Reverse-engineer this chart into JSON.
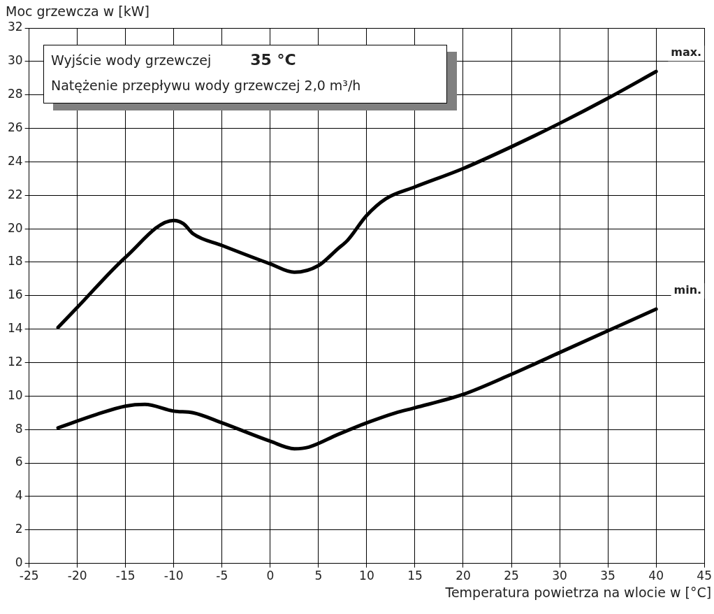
{
  "chart_data": {
    "type": "line",
    "ylabel": "Moc grzewcza w [kW]",
    "xlabel": "Temperatura powietrza na wlocie w [°C]",
    "annotations": [
      "Wyjście wody grzewczej",
      "35 °C",
      "Natężenie przepływu wody grzewczej  2,0 m³/h"
    ],
    "xlim": [
      -25,
      45
    ],
    "xticks": [
      -25,
      -20,
      -15,
      -10,
      -5,
      0,
      5,
      10,
      15,
      20,
      25,
      30,
      35,
      40,
      45
    ],
    "ylim": [
      0,
      32
    ],
    "yticks": [
      0,
      2,
      4,
      6,
      8,
      10,
      12,
      14,
      16,
      18,
      20,
      22,
      24,
      26,
      28,
      30,
      32
    ],
    "grid": true,
    "legend": false,
    "marker": "none",
    "line_style": "solid",
    "series": [
      {
        "name": "max.",
        "color": "#000000",
        "x": [
          -22,
          -20,
          -15,
          -10,
          -9,
          -8,
          -5,
          0,
          2.5,
          5,
          7,
          8,
          10,
          12,
          15,
          20,
          25,
          30,
          35,
          40
        ],
        "values": [
          14.1,
          15.3,
          18.3,
          20.5,
          20.3,
          19.7,
          19.0,
          17.9,
          17.4,
          17.8,
          18.8,
          19.3,
          20.8,
          21.8,
          22.5,
          23.6,
          24.9,
          26.3,
          27.8,
          29.4
        ]
      },
      {
        "name": "min.",
        "color": "#000000",
        "x": [
          -22,
          -18,
          -15,
          -13,
          -10,
          -8,
          -5,
          0,
          2.5,
          4,
          7,
          10,
          13,
          15,
          20,
          25,
          30,
          35,
          40
        ],
        "values": [
          8.1,
          8.9,
          9.4,
          9.5,
          9.1,
          9.0,
          8.4,
          7.3,
          6.85,
          6.95,
          7.7,
          8.4,
          9.0,
          9.3,
          10.1,
          11.3,
          12.6,
          13.9,
          15.2
        ]
      }
    ]
  }
}
